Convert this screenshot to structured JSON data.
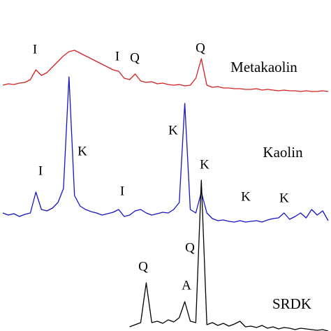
{
  "chart_data": {
    "type": "line",
    "ylim": [
      0,
      474
    ],
    "series": [
      {
        "name": "Metakaolin",
        "color": "#d42020",
        "peak_labels": [
          "I",
          "I",
          "Q",
          "Q"
        ],
        "values": [
          352,
          354,
          353,
          355,
          356,
          360,
          374,
          366,
          370,
          378,
          386,
          394,
          400,
          402,
          398,
          394,
          390,
          386,
          382,
          378,
          374,
          372,
          362,
          360,
          368,
          358,
          356,
          357,
          354,
          355,
          353,
          352,
          353,
          351,
          352,
          362,
          390,
          352,
          349,
          350,
          348,
          348,
          347,
          347,
          346,
          346,
          347,
          345,
          346,
          345,
          344,
          345,
          344,
          344,
          343,
          344,
          343,
          343,
          344,
          343
        ]
      },
      {
        "name": "Kaolin",
        "color": "#1414c8",
        "peak_labels": [
          "I",
          "K",
          "I",
          "K",
          "K",
          "K",
          "K"
        ],
        "values": [
          169,
          166,
          168,
          164,
          167,
          169,
          199,
          174,
          172,
          176,
          184,
          204,
          364,
          194,
          179,
          174,
          171,
          169,
          166,
          168,
          170,
          174,
          164,
          166,
          172,
          174,
          169,
          166,
          168,
          170,
          169,
          174,
          184,
          326,
          174,
          169,
          199,
          169,
          161,
          158,
          159,
          157,
          156,
          158,
          156,
          157,
          158,
          156,
          159,
          161,
          162,
          169,
          160,
          164,
          169,
          162,
          174,
          166,
          172,
          158
        ]
      },
      {
        "name": "SRDK",
        "color": "#000000",
        "peak_labels": [
          "Q",
          "A",
          "Q"
        ],
        "values": [
          null,
          null,
          null,
          null,
          null,
          null,
          null,
          null,
          null,
          null,
          null,
          null,
          null,
          null,
          null,
          null,
          null,
          null,
          null,
          null,
          null,
          null,
          null,
          6,
          9,
          12,
          69,
          12,
          14,
          11,
          16,
          13,
          19,
          42,
          14,
          12,
          216,
          9,
          12,
          8,
          11,
          7,
          10,
          14,
          6,
          7,
          5,
          8,
          4,
          6,
          3,
          5,
          4,
          2,
          4,
          3,
          2,
          1,
          2,
          0
        ]
      }
    ]
  }
}
